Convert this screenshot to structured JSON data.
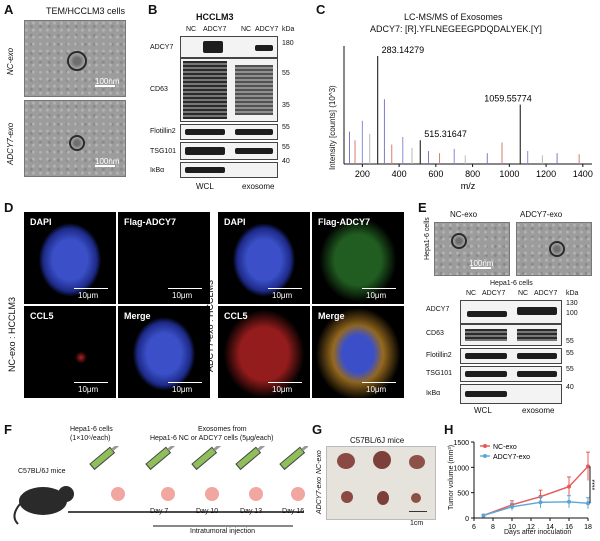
{
  "panel_letters": {
    "a": "A",
    "b": "B",
    "c": "C",
    "d": "D",
    "e": "E",
    "f": "F",
    "g": "G",
    "h": "H"
  },
  "panelA": {
    "title": "TEM/HCCLM3 cells",
    "row1": "NC-exo",
    "row2": "ADCY7-exo",
    "scale": "100nm"
  },
  "panelB": {
    "title": "HCCLM3",
    "lanes": [
      "NC",
      "ADCY7",
      "NC",
      "ADCY7"
    ],
    "unit": "kDa",
    "proteins": [
      "ADCY7",
      "CD63",
      "Flotillin2",
      "TSG101",
      "IκBα"
    ],
    "markers": [
      "180",
      "55",
      "35",
      "55",
      "55",
      "40"
    ],
    "groups": [
      "WCL",
      "exosome"
    ]
  },
  "panelC": {
    "title": "LC-MS/MS of Exosomes",
    "subtitle": "ADCY7: [R].YFLNEGEEGPDQDALYEK.[Y]",
    "ylabel": "Intensity [counts] (10^3)",
    "xlabel": "m/z",
    "peak_labels": [
      "283.14279",
      "515.31647",
      "1059.55774"
    ]
  },
  "chart_data": [
    {
      "type": "bar",
      "title": "LC-MS/MS of Exosomes",
      "subtitle": "ADCY7: [R].YFLNEGEEGPDQDALYEK.[Y]",
      "xlabel": "m/z",
      "ylabel": "Intensity [counts] (10^3)",
      "xlim": [
        100,
        1450
      ],
      "xticks": [
        200,
        400,
        600,
        800,
        1000,
        1200,
        1400
      ],
      "labeled_peaks": [
        {
          "x": 283.14279,
          "y": 1.0
        },
        {
          "x": 515.31647,
          "y": 0.22
        },
        {
          "x": 1059.55774,
          "y": 0.55
        }
      ],
      "minor_peaks": [
        {
          "x": 130,
          "y": 0.3
        },
        {
          "x": 160,
          "y": 0.22
        },
        {
          "x": 200,
          "y": 0.4
        },
        {
          "x": 240,
          "y": 0.28
        },
        {
          "x": 320,
          "y": 0.6
        },
        {
          "x": 360,
          "y": 0.18
        },
        {
          "x": 420,
          "y": 0.25
        },
        {
          "x": 470,
          "y": 0.15
        },
        {
          "x": 560,
          "y": 0.12
        },
        {
          "x": 620,
          "y": 0.1
        },
        {
          "x": 700,
          "y": 0.14
        },
        {
          "x": 760,
          "y": 0.08
        },
        {
          "x": 880,
          "y": 0.1
        },
        {
          "x": 960,
          "y": 0.2
        },
        {
          "x": 1100,
          "y": 0.12
        },
        {
          "x": 1180,
          "y": 0.08
        },
        {
          "x": 1260,
          "y": 0.1
        },
        {
          "x": 1380,
          "y": 0.09
        }
      ]
    },
    {
      "type": "line",
      "xlabel": "Days after inoculation",
      "ylabel": "Tumor volume (mm³)",
      "xlim": [
        6,
        18
      ],
      "ylim": [
        0,
        1500
      ],
      "xticks": [
        6,
        8,
        10,
        12,
        14,
        16,
        18
      ],
      "yticks": [
        0,
        500,
        1000,
        1500
      ],
      "legend": "top-left",
      "significance": "****",
      "series": [
        {
          "name": "NC-exo",
          "color": "#e8585b",
          "x": [
            7,
            10,
            13,
            16,
            18
          ],
          "y": [
            50,
            260,
            420,
            620,
            1020
          ],
          "err": [
            20,
            80,
            130,
            190,
            280
          ]
        },
        {
          "name": "ADCY7-exo",
          "color": "#5aa7d6",
          "x": [
            7,
            10,
            13,
            16,
            18
          ],
          "y": [
            50,
            220,
            310,
            320,
            290
          ],
          "err": [
            20,
            70,
            110,
            120,
            110
          ]
        }
      ]
    }
  ],
  "panelD": {
    "left_side": "NC-exo : HCCLM3",
    "right_side": "ADCY7-exo : HCCLM3",
    "channels": [
      "DAPI",
      "Flag-ADCY7",
      "CCL5",
      "Merge"
    ],
    "scale": "10μm"
  },
  "panelE": {
    "tem_left": "NC-exo",
    "tem_right": "ADCY7-exo",
    "tem_side": "Hepa1-6 cells",
    "scale": "100nm",
    "blot_title": "Hepa1-6 cells",
    "lanes": [
      "NC",
      "ADCY7",
      "NC",
      "ADCY7"
    ],
    "unit": "kDa",
    "proteins": [
      "ADCY7",
      "CD63",
      "Flotillin2",
      "TSG101",
      "IκBα"
    ],
    "markers": [
      "130",
      "100",
      "55",
      "55",
      "55",
      "40"
    ],
    "groups": [
      "WCL",
      "exosome"
    ]
  },
  "panelF": {
    "cells": "Hepa1-6 cells",
    "cells_sub": "(1×10⁶/each)",
    "exo": "Exosomes from",
    "exo_sub": "Hepa1-6 NC or ADCY7 cells (5μg/each)",
    "mouse": "C57BL/6J mice",
    "days": [
      "Day 7",
      "Day 10",
      "Day 13",
      "Day 16"
    ],
    "injection": "Intratumoral injection"
  },
  "panelG": {
    "title": "C57BL/6J mice",
    "row1": "NC-exo",
    "row2": "ADCY7-exo",
    "scale": "1cm"
  },
  "panelH": {
    "xlabel": "Days after inoculation",
    "ylabel": "Tumor volume (mm³)",
    "legend": [
      "NC-exo",
      "ADCY7-exo"
    ],
    "sig": "****",
    "yticks": [
      "0",
      "500",
      "1000",
      "1500"
    ],
    "xticks": [
      "6",
      "8",
      "10",
      "12",
      "14",
      "16",
      "18"
    ]
  }
}
